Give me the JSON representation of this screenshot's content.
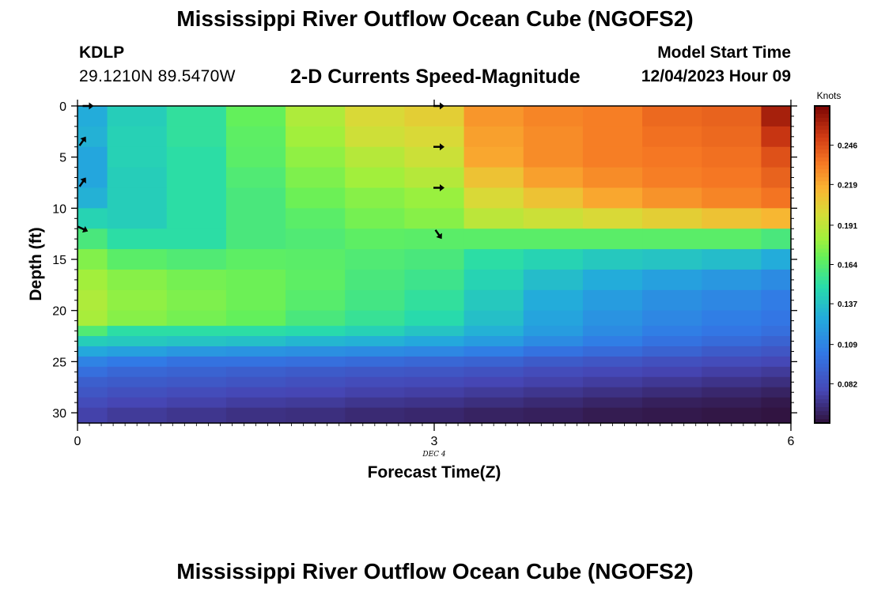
{
  "header": {
    "title": "Mississippi River Outflow Ocean Cube (NGOFS2)",
    "station_id": "KDLP",
    "station_coords": "29.1210N  89.5470W",
    "subtitle": "2-D Currents Speed-Magnitude",
    "model_start_label": "Model Start Time",
    "model_start_value": "12/04/2023 Hour 09"
  },
  "footer": {
    "title": "Mississippi River Outflow Ocean Cube (NGOFS2)"
  },
  "chart_data": {
    "type": "heatmap",
    "title": "2-D Currents Speed-Magnitude",
    "xlabel": "Forecast Time(Z)",
    "ylabel": "Depth (ft)",
    "x_date_label": "DEC 4",
    "xlim": [
      0,
      6
    ],
    "ylim": [
      0,
      31
    ],
    "y_inverted": true,
    "x_ticks": [
      0,
      3,
      6
    ],
    "x_tick_labels": [
      "0",
      "3",
      "6"
    ],
    "y_ticks": [
      0,
      5,
      10,
      15,
      20,
      25,
      30
    ],
    "y_tick_labels": [
      "0",
      "5",
      "10",
      "15",
      "20",
      "25",
      "30"
    ],
    "colorbar": {
      "label": "Knots",
      "range": [
        0.055,
        0.273
      ],
      "ticks": [
        0.082,
        0.109,
        0.137,
        0.164,
        0.191,
        0.219,
        0.246
      ],
      "tick_labels": [
        "0.082",
        "0.109",
        "0.137",
        "0.164",
        "0.191",
        "0.219",
        "0.246"
      ]
    },
    "time_columns": [
      0,
      0.5,
      1,
      1.5,
      2,
      2.5,
      3,
      3.5,
      4,
      4.5,
      5,
      5.5,
      6
    ],
    "depth_bands": [
      {
        "depth_top": 0,
        "values": [
          0.128,
          0.142,
          0.152,
          0.168,
          0.186,
          0.2,
          0.205,
          0.225,
          0.23,
          0.232,
          0.238,
          0.24,
          0.262
        ]
      },
      {
        "depth_top": 2,
        "values": [
          0.13,
          0.144,
          0.152,
          0.166,
          0.182,
          0.196,
          0.2,
          0.222,
          0.228,
          0.232,
          0.236,
          0.238,
          0.254
        ]
      },
      {
        "depth_top": 4,
        "values": [
          0.125,
          0.144,
          0.15,
          0.165,
          0.178,
          0.188,
          0.195,
          0.22,
          0.228,
          0.232,
          0.234,
          0.236,
          0.245
        ]
      },
      {
        "depth_top": 6,
        "values": [
          0.125,
          0.142,
          0.15,
          0.162,
          0.174,
          0.182,
          0.188,
          0.21,
          0.222,
          0.228,
          0.232,
          0.234,
          0.24
        ]
      },
      {
        "depth_top": 8,
        "values": [
          0.13,
          0.142,
          0.15,
          0.16,
          0.17,
          0.176,
          0.18,
          0.2,
          0.21,
          0.22,
          0.226,
          0.23,
          0.235
        ]
      },
      {
        "depth_top": 10,
        "values": [
          0.145,
          0.142,
          0.15,
          0.16,
          0.165,
          0.172,
          0.176,
          0.19,
          0.195,
          0.2,
          0.205,
          0.21,
          0.215
        ]
      },
      {
        "depth_top": 12,
        "values": [
          0.16,
          0.15,
          0.15,
          0.16,
          0.162,
          0.166,
          0.165,
          0.165,
          0.165,
          0.165,
          0.165,
          0.165,
          0.16
        ]
      },
      {
        "depth_top": 14,
        "values": [
          0.175,
          0.165,
          0.162,
          0.166,
          0.165,
          0.162,
          0.16,
          0.15,
          0.145,
          0.14,
          0.138,
          0.135,
          0.128
        ]
      },
      {
        "depth_top": 16,
        "values": [
          0.182,
          0.176,
          0.172,
          0.17,
          0.166,
          0.16,
          0.156,
          0.145,
          0.135,
          0.128,
          0.122,
          0.118,
          0.112
        ]
      },
      {
        "depth_top": 18,
        "values": [
          0.186,
          0.178,
          0.174,
          0.17,
          0.164,
          0.158,
          0.152,
          0.14,
          0.128,
          0.12,
          0.114,
          0.11,
          0.105
        ]
      },
      {
        "depth_top": 20,
        "values": [
          0.184,
          0.176,
          0.172,
          0.168,
          0.16,
          0.154,
          0.148,
          0.136,
          0.124,
          0.116,
          0.11,
          0.106,
          0.102
        ]
      },
      {
        "depth_top": 21.5,
        "values": [
          0.162,
          0.15,
          0.15,
          0.15,
          0.148,
          0.144,
          0.138,
          0.13,
          0.12,
          0.112,
          0.106,
          0.102,
          0.098
        ]
      },
      {
        "depth_top": 22.5,
        "values": [
          0.142,
          0.14,
          0.138,
          0.136,
          0.132,
          0.13,
          0.126,
          0.12,
          0.112,
          0.106,
          0.1,
          0.096,
          0.092
        ]
      },
      {
        "depth_top": 23.5,
        "values": [
          0.126,
          0.122,
          0.118,
          0.116,
          0.114,
          0.112,
          0.11,
          0.106,
          0.1,
          0.096,
          0.092,
          0.088,
          0.085
        ]
      },
      {
        "depth_top": 24.5,
        "values": [
          0.108,
          0.104,
          0.1,
          0.1,
          0.098,
          0.096,
          0.094,
          0.092,
          0.088,
          0.085,
          0.082,
          0.08,
          0.078
        ]
      },
      {
        "depth_top": 25.5,
        "values": [
          0.098,
          0.094,
          0.092,
          0.09,
          0.088,
          0.086,
          0.085,
          0.083,
          0.08,
          0.078,
          0.076,
          0.074,
          0.072
        ]
      },
      {
        "depth_top": 26.5,
        "values": [
          0.09,
          0.088,
          0.086,
          0.084,
          0.082,
          0.08,
          0.079,
          0.077,
          0.075,
          0.073,
          0.071,
          0.069,
          0.067
        ]
      },
      {
        "depth_top": 27.5,
        "values": [
          0.085,
          0.082,
          0.08,
          0.078,
          0.077,
          0.075,
          0.074,
          0.072,
          0.07,
          0.068,
          0.066,
          0.064,
          0.062
        ]
      },
      {
        "depth_top": 28.5,
        "values": [
          0.08,
          0.077,
          0.075,
          0.073,
          0.072,
          0.07,
          0.069,
          0.067,
          0.065,
          0.063,
          0.061,
          0.06,
          0.058
        ]
      },
      {
        "depth_top": 29.5,
        "values": [
          0.075,
          0.072,
          0.07,
          0.068,
          0.067,
          0.065,
          0.064,
          0.062,
          0.061,
          0.059,
          0.058,
          0.057,
          0.056
        ]
      }
    ],
    "current_vectors": [
      {
        "time": 0,
        "depth": 3.5,
        "direction": "northeast"
      },
      {
        "time": 0,
        "depth": 7.5,
        "direction": "northeast"
      },
      {
        "time": 0,
        "depth": 12,
        "direction": "east-southeast"
      },
      {
        "time": 0.05,
        "depth": 0,
        "direction": "east"
      },
      {
        "time": 3,
        "depth": 0,
        "direction": "east"
      },
      {
        "time": 3,
        "depth": 4,
        "direction": "east"
      },
      {
        "time": 3,
        "depth": 8,
        "direction": "east"
      },
      {
        "time": 3,
        "depth": 12.5,
        "direction": "southeast"
      }
    ]
  }
}
